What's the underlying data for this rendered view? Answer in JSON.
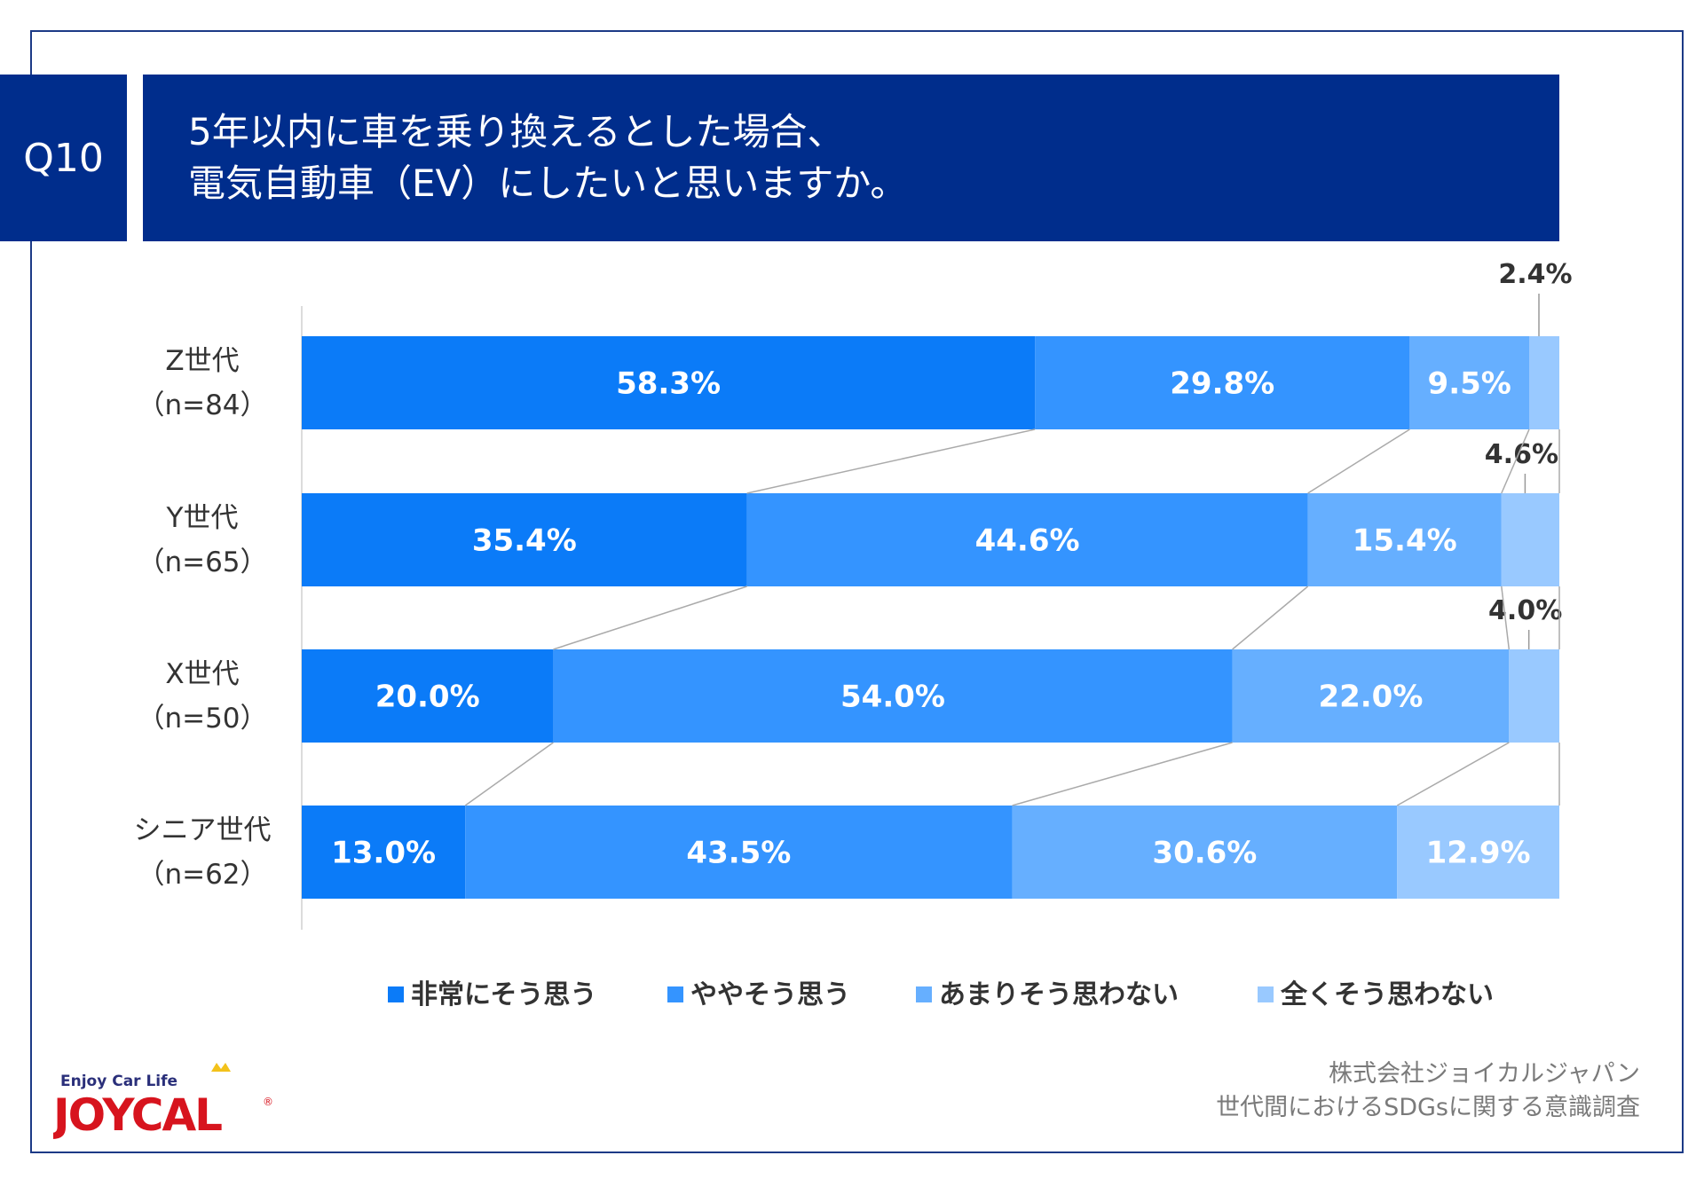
{
  "header": {
    "question_no": "Q10",
    "title_line1": "5年以内に車を乗り換えるとした場合、",
    "title_line2": "電気自動車（EV）にしたいと思いますか。"
  },
  "chart_data": {
    "type": "bar",
    "orientation": "horizontal",
    "stacked": true,
    "percent": true,
    "categories": [
      {
        "name": "Z世代",
        "n": "（n=84）"
      },
      {
        "name": "Y世代",
        "n": "（n=65）"
      },
      {
        "name": "X世代",
        "n": "（n=50）"
      },
      {
        "name": "シニア世代",
        "n": "（n=62）"
      }
    ],
    "series": [
      {
        "name": "非常にそう思う",
        "color": "#0b7bf8",
        "values": [
          58.3,
          35.4,
          20.0,
          13.0
        ]
      },
      {
        "name": "ややそう思う",
        "color": "#3494ff",
        "values": [
          29.8,
          44.6,
          54.0,
          43.5
        ]
      },
      {
        "name": "あまりそう思わない",
        "color": "#66afff",
        "values": [
          9.5,
          15.4,
          22.0,
          30.6
        ]
      },
      {
        "name": "全くそう思わない",
        "color": "#99c9ff",
        "values": [
          2.4,
          4.6,
          4.0,
          12.9
        ]
      }
    ],
    "value_format": "0.0%",
    "xlim": [
      0,
      100
    ],
    "legend_position": "bottom",
    "grid": false,
    "connector_lines": true
  },
  "footer": {
    "company": "株式会社ジョイカルジャパン",
    "survey": "世代間におけるSDGsに関する意識調査"
  },
  "logo": {
    "tagline": "Enjoy Car Life",
    "name": "JOYCAL"
  }
}
